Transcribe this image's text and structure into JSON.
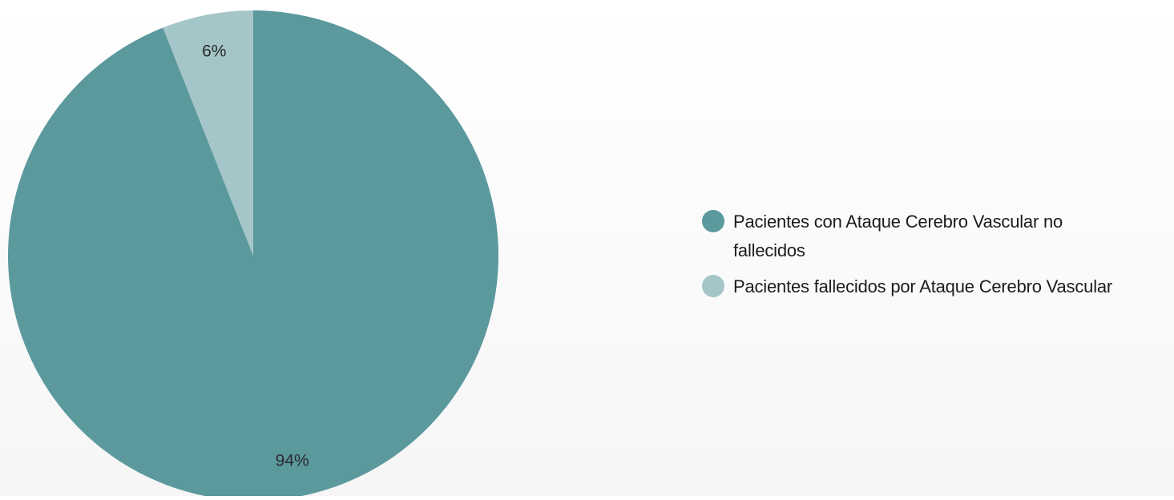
{
  "chart_data": {
    "type": "pie",
    "categories": [
      "Pacientes con Ataque Cerebro Vascular no fallecidos",
      "Pacientes fallecidos por Ataque Cerebro Vascular"
    ],
    "values": [
      94,
      6
    ],
    "data_labels": [
      "94%",
      "6%"
    ],
    "colors": [
      "#5b999d",
      "#a4c6c9"
    ],
    "start_angle_deg": 0,
    "direction": "clockwise",
    "legend_placement": "right"
  }
}
